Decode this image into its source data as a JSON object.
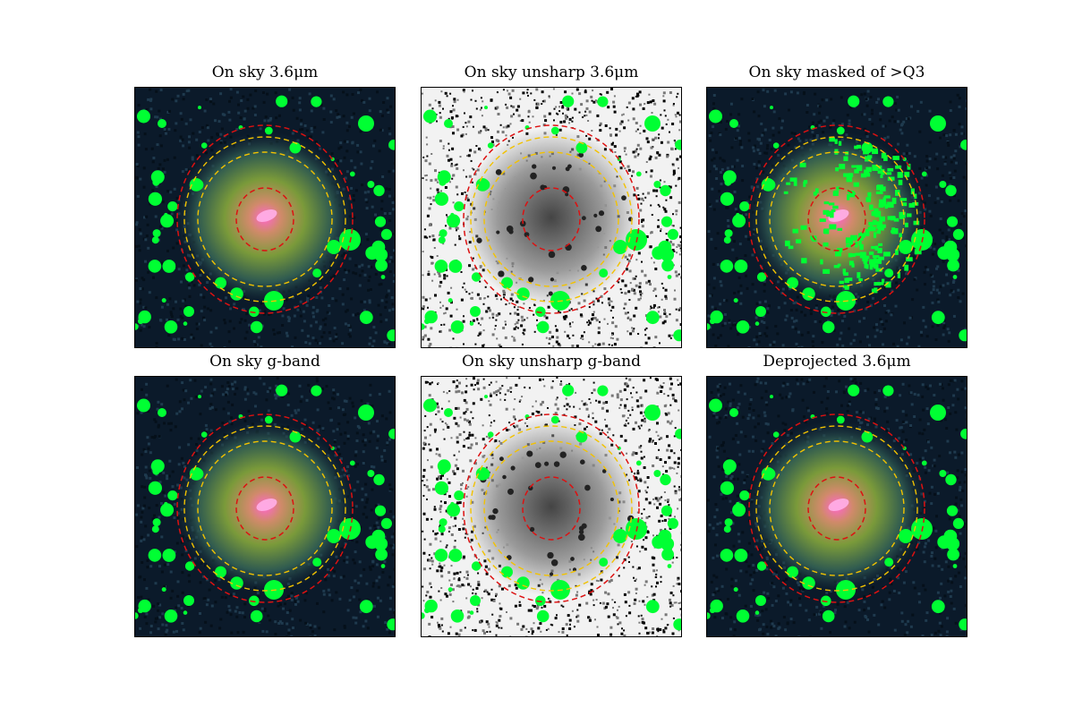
{
  "figure": {
    "panels": [
      {
        "title": "On sky 3.6μm",
        "style": "color"
      },
      {
        "title": "On sky unsharp 3.6μm",
        "style": "unsharp"
      },
      {
        "title": "On sky masked of >Q3",
        "style": "masked"
      },
      {
        "title": "On sky g-band",
        "style": "color"
      },
      {
        "title": "On sky unsharp g-band",
        "style": "unsharp"
      },
      {
        "title": "Deprojected 3.6μm",
        "style": "color"
      }
    ],
    "colors": {
      "mask": "#00ff33",
      "ring_red": "#dd1111",
      "ring_yellow": "#f2c200",
      "background_dark": "#0b1a2a",
      "galaxy_core": "#ff66cc",
      "galaxy_disk": "#7a9a3a"
    }
  }
}
